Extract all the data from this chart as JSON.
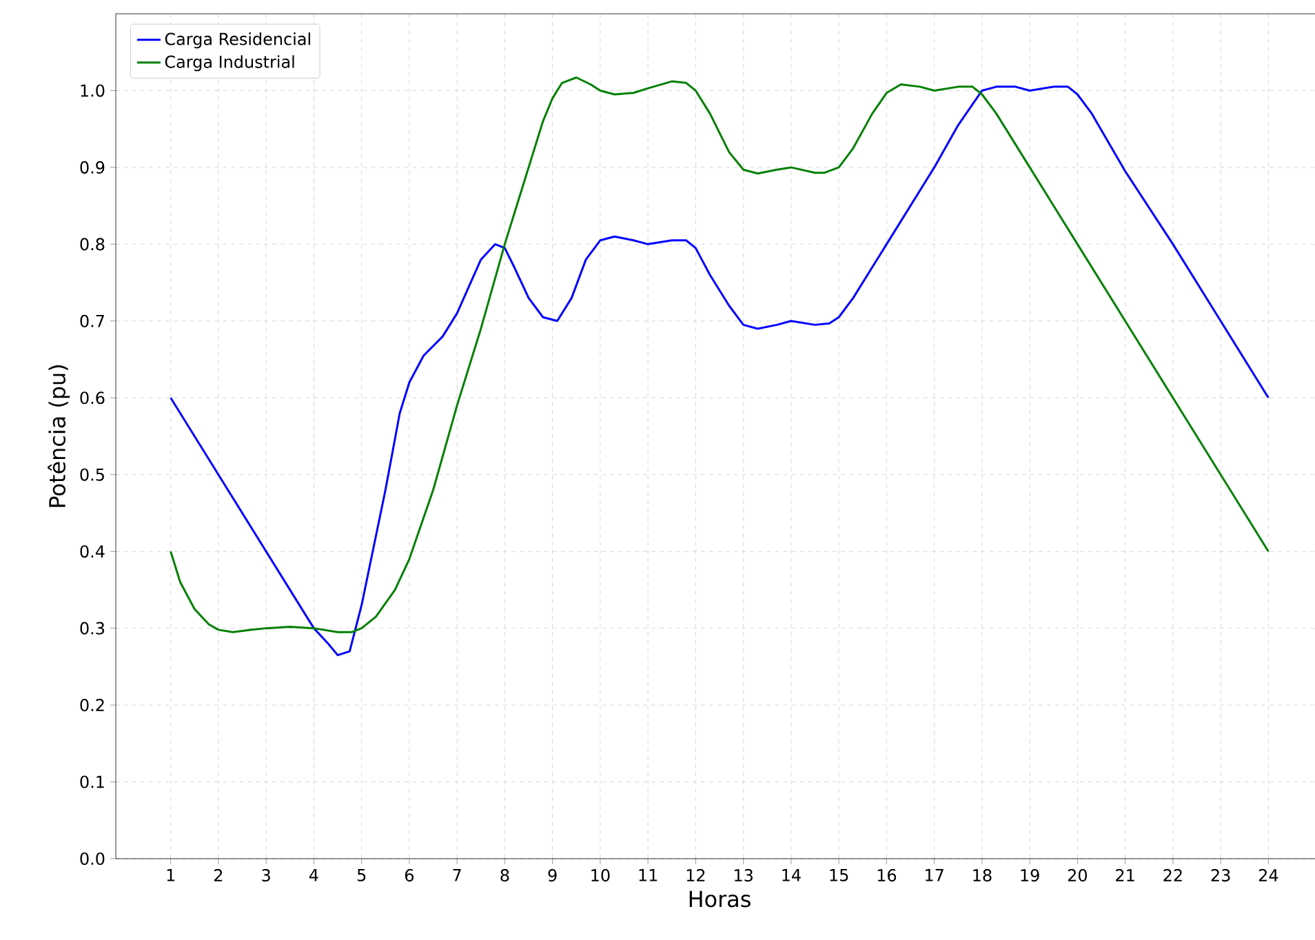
{
  "chart_data": {
    "type": "line",
    "xlabel": "Horas",
    "ylabel": "Potência (pu)",
    "xlim": [
      -0.15,
      25.15
    ],
    "ylim": [
      0,
      1.1
    ],
    "xticks": [
      1,
      2,
      3,
      4,
      5,
      6,
      7,
      8,
      9,
      10,
      11,
      12,
      13,
      14,
      15,
      16,
      17,
      18,
      19,
      20,
      21,
      22,
      23,
      24
    ],
    "yticks": [
      {
        "value": 0,
        "label": "0.0"
      },
      {
        "value": 0.1,
        "label": "0.1"
      },
      {
        "value": 0.2,
        "label": "0.2"
      },
      {
        "value": 0.3,
        "label": "0.3"
      },
      {
        "value": 0.4,
        "label": "0.4"
      },
      {
        "value": 0.5,
        "label": "0.5"
      },
      {
        "value": 0.6,
        "label": "0.6"
      },
      {
        "value": 0.7,
        "label": "0.7"
      },
      {
        "value": 0.8,
        "label": "0.8"
      },
      {
        "value": 0.9,
        "label": "0.9"
      },
      {
        "value": 1.0,
        "label": "1.0"
      }
    ],
    "grid": true,
    "legend": "top left",
    "line_style": "solid",
    "marker": "none",
    "series": [
      {
        "name": "Carga Residencial",
        "color": "#0000ff",
        "x": [
          1,
          4,
          4.3,
          4.5,
          4.75,
          5,
          5.5,
          5.8,
          6,
          6.3,
          6.7,
          7,
          7.5,
          7.8,
          8,
          8.2,
          8.5,
          8.8,
          9.1,
          9.4,
          9.7,
          10,
          10.3,
          10.7,
          11,
          11.5,
          11.8,
          12,
          12.3,
          12.7,
          13,
          13.3,
          13.7,
          14,
          14.5,
          14.8,
          15,
          15.3,
          15.7,
          16,
          17,
          17.5,
          18,
          18.3,
          18.7,
          19,
          19.5,
          19.8,
          20,
          20.3,
          21,
          22,
          23,
          24
        ],
        "values": [
          0.6,
          0.3,
          0.28,
          0.265,
          0.27,
          0.33,
          0.48,
          0.58,
          0.62,
          0.655,
          0.68,
          0.71,
          0.78,
          0.8,
          0.795,
          0.77,
          0.73,
          0.705,
          0.7,
          0.73,
          0.78,
          0.805,
          0.81,
          0.805,
          0.8,
          0.805,
          0.805,
          0.795,
          0.76,
          0.72,
          0.695,
          0.69,
          0.695,
          0.7,
          0.695,
          0.697,
          0.705,
          0.73,
          0.77,
          0.8,
          0.9,
          0.955,
          1.0,
          1.005,
          1.005,
          1.0,
          1.005,
          1.005,
          0.995,
          0.97,
          0.895,
          0.8,
          0.7,
          0.6
        ]
      },
      {
        "name": "Carga Industrial",
        "color": "#008000",
        "x": [
          1,
          1.2,
          1.5,
          1.8,
          2,
          2.3,
          2.7,
          3,
          3.5,
          4,
          4.5,
          4.8,
          5,
          5.3,
          5.7,
          6,
          6.5,
          7,
          7.5,
          8,
          8.5,
          8.8,
          9,
          9.2,
          9.5,
          9.8,
          10,
          10.3,
          10.7,
          11,
          11.5,
          11.8,
          12,
          12.3,
          12.7,
          13,
          13.3,
          13.7,
          14,
          14.5,
          14.7,
          15,
          15.3,
          15.7,
          16,
          16.3,
          16.7,
          17,
          17.5,
          17.8,
          18,
          18.3,
          19,
          20,
          21,
          22,
          23,
          24
        ],
        "values": [
          0.4,
          0.36,
          0.325,
          0.305,
          0.298,
          0.295,
          0.298,
          0.3,
          0.302,
          0.3,
          0.295,
          0.295,
          0.3,
          0.315,
          0.35,
          0.39,
          0.48,
          0.59,
          0.69,
          0.8,
          0.9,
          0.96,
          0.99,
          1.01,
          1.017,
          1.008,
          1.0,
          0.995,
          0.997,
          1.003,
          1.012,
          1.01,
          1.0,
          0.97,
          0.92,
          0.897,
          0.892,
          0.897,
          0.9,
          0.893,
          0.893,
          0.9,
          0.925,
          0.97,
          0.997,
          1.008,
          1.005,
          1.0,
          1.005,
          1.005,
          0.995,
          0.97,
          0.9,
          0.8,
          0.7,
          0.6,
          0.5,
          0.4
        ]
      }
    ]
  }
}
